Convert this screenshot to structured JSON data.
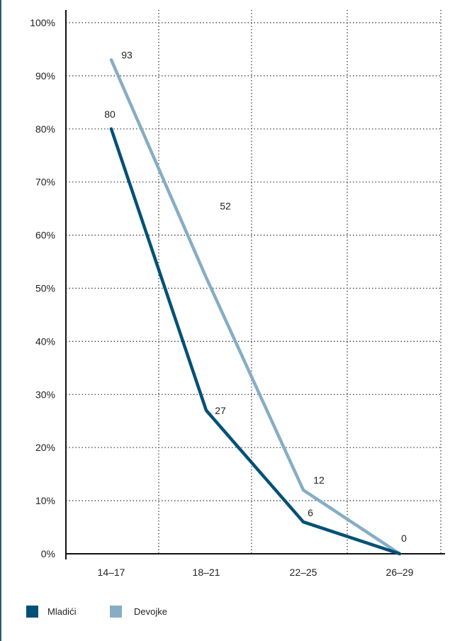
{
  "chart_data": {
    "type": "line",
    "x": [
      "14–17",
      "18–21",
      "22–25",
      "26–29"
    ],
    "yticks": [
      "0%",
      "10%",
      "20%",
      "30%",
      "40%",
      "50%",
      "60%",
      "70%",
      "80%",
      "90%",
      "100%"
    ],
    "ylim": [
      0,
      100
    ],
    "grid": true,
    "legend_position": "bottom-left",
    "series": [
      {
        "name": "Mladići",
        "values": [
          80,
          27,
          6,
          0
        ],
        "labels": [
          "80",
          "27",
          "6",
          ""
        ],
        "color": "#005077"
      },
      {
        "name": "Devojke",
        "values": [
          93,
          52,
          12,
          0
        ],
        "labels": [
          "93",
          "52",
          "12",
          "0"
        ],
        "color": "#86adc5"
      }
    ]
  }
}
